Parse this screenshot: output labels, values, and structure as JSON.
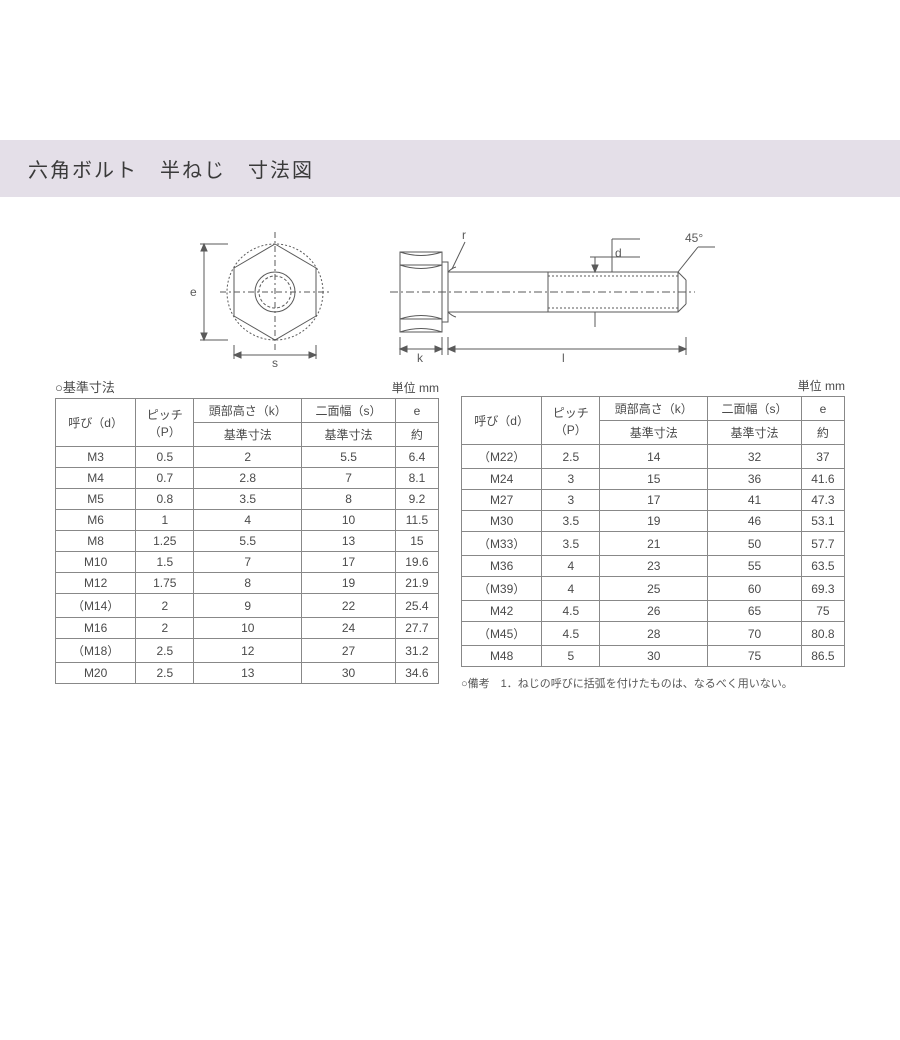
{
  "header": {
    "title": "六角ボルト　半ねじ　寸法図"
  },
  "diagram": {
    "labels": {
      "e": "e",
      "s": "s",
      "r": "r",
      "k": "k",
      "l": "l",
      "d": "d",
      "angle": "45°"
    },
    "colors": {
      "stroke": "#5a5a5a",
      "fill_light": "#ffffff"
    }
  },
  "tableLeft": {
    "caption": "○基準寸法",
    "unit": "単位 mm",
    "h1": {
      "c0": "呼び（d）",
      "c1": "ピッチ\n（P）",
      "c2": "頭部高さ（k）",
      "c3": "二面幅（s）",
      "c4": "e"
    },
    "h2": {
      "c2": "基準寸法",
      "c3": "基準寸法",
      "c4": "約"
    },
    "rows": [
      {
        "c0": "M3",
        "c1": "0.5",
        "c2": "2",
        "c3": "5.5",
        "c4": "6.4"
      },
      {
        "c0": "M4",
        "c1": "0.7",
        "c2": "2.8",
        "c3": "7",
        "c4": "8.1"
      },
      {
        "c0": "M5",
        "c1": "0.8",
        "c2": "3.5",
        "c3": "8",
        "c4": "9.2"
      },
      {
        "c0": "M6",
        "c1": "1",
        "c2": "4",
        "c3": "10",
        "c4": "11.5"
      },
      {
        "c0": "M8",
        "c1": "1.25",
        "c2": "5.5",
        "c3": "13",
        "c4": "15"
      },
      {
        "c0": "M10",
        "c1": "1.5",
        "c2": "7",
        "c3": "17",
        "c4": "19.6"
      },
      {
        "c0": "M12",
        "c1": "1.75",
        "c2": "8",
        "c3": "19",
        "c4": "21.9"
      },
      {
        "c0": "（M14）",
        "c1": "2",
        "c2": "9",
        "c3": "22",
        "c4": "25.4"
      },
      {
        "c0": "M16",
        "c1": "2",
        "c2": "10",
        "c3": "24",
        "c4": "27.7"
      },
      {
        "c0": "（M18）",
        "c1": "2.5",
        "c2": "12",
        "c3": "27",
        "c4": "31.2"
      },
      {
        "c0": "M20",
        "c1": "2.5",
        "c2": "13",
        "c3": "30",
        "c4": "34.6"
      }
    ]
  },
  "tableRight": {
    "unit": "単位 mm",
    "h1": {
      "c0": "呼び（d）",
      "c1": "ピッチ\n（P）",
      "c2": "頭部高さ（k）",
      "c3": "二面幅（s）",
      "c4": "e"
    },
    "h2": {
      "c2": "基準寸法",
      "c3": "基準寸法",
      "c4": "約"
    },
    "rows": [
      {
        "c0": "（M22）",
        "c1": "2.5",
        "c2": "14",
        "c3": "32",
        "c4": "37"
      },
      {
        "c0": "M24",
        "c1": "3",
        "c2": "15",
        "c3": "36",
        "c4": "41.6"
      },
      {
        "c0": "M27",
        "c1": "3",
        "c2": "17",
        "c3": "41",
        "c4": "47.3"
      },
      {
        "c0": "M30",
        "c1": "3.5",
        "c2": "19",
        "c3": "46",
        "c4": "53.1"
      },
      {
        "c0": "（M33）",
        "c1": "3.5",
        "c2": "21",
        "c3": "50",
        "c4": "57.7"
      },
      {
        "c0": "M36",
        "c1": "4",
        "c2": "23",
        "c3": "55",
        "c4": "63.5"
      },
      {
        "c0": "（M39）",
        "c1": "4",
        "c2": "25",
        "c3": "60",
        "c4": "69.3"
      },
      {
        "c0": "M42",
        "c1": "4.5",
        "c2": "26",
        "c3": "65",
        "c4": "75"
      },
      {
        "c0": "（M45）",
        "c1": "4.5",
        "c2": "28",
        "c3": "70",
        "c4": "80.8"
      },
      {
        "c0": "M48",
        "c1": "5",
        "c2": "30",
        "c3": "75",
        "c4": "86.5"
      }
    ],
    "note": "○備考　1．ねじの呼びに括弧を付けたものは、なるべく用いない。"
  }
}
